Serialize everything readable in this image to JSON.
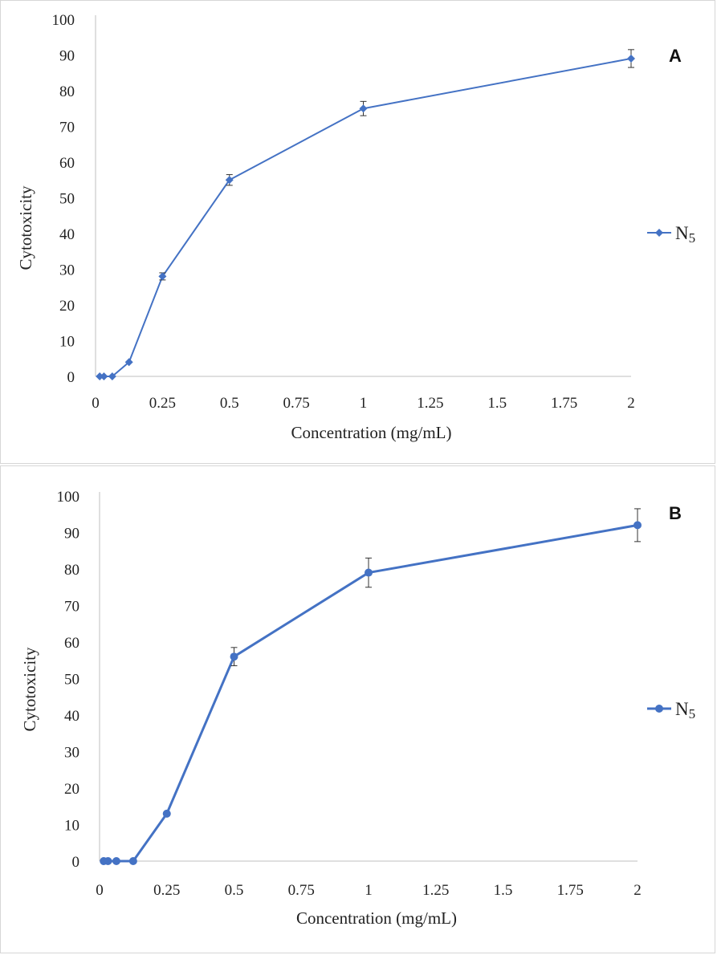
{
  "chart_data": [
    {
      "type": "line",
      "panel_label": "A",
      "xlabel": "Concentration (mg/mL)",
      "ylabel": "Cytotoxicity",
      "xlim": [
        0,
        2
      ],
      "ylim": [
        0,
        100
      ],
      "x_ticks": [
        "0",
        "0.25",
        "0.5",
        "0.75",
        "1",
        "1.25",
        "1.5",
        "1.75",
        "2"
      ],
      "y_ticks": [
        "0",
        "10",
        "20",
        "30",
        "40",
        "50",
        "60",
        "70",
        "80",
        "90",
        "100"
      ],
      "marker": "diamond",
      "color": "#4472c4",
      "legend": {
        "name": "N",
        "subscript": "5",
        "position": "right"
      },
      "series": [
        {
          "name": "N5",
          "x": [
            0.0156,
            0.0313,
            0.0625,
            0.125,
            0.25,
            0.5,
            1,
            2
          ],
          "y": [
            0,
            0,
            0,
            4,
            28,
            55,
            75,
            89
          ],
          "error": [
            0,
            0,
            0,
            0,
            1,
            1.5,
            2,
            2.5
          ]
        }
      ]
    },
    {
      "type": "line",
      "panel_label": "B",
      "xlabel": "Concentration (mg/mL)",
      "ylabel": "Cytotoxicity",
      "xlim": [
        0,
        2
      ],
      "ylim": [
        0,
        100
      ],
      "x_ticks": [
        "0",
        "0.25",
        "0.5",
        "0.75",
        "1",
        "1.25",
        "1.5",
        "1.75",
        "2"
      ],
      "y_ticks": [
        "0",
        "10",
        "20",
        "30",
        "40",
        "50",
        "60",
        "70",
        "80",
        "90",
        "100"
      ],
      "marker": "circle",
      "color": "#4472c4",
      "legend": {
        "name": "N",
        "subscript": "5",
        "position": "right"
      },
      "series": [
        {
          "name": "N5",
          "x": [
            0.0156,
            0.0313,
            0.0625,
            0.125,
            0.25,
            0.5,
            1,
            2
          ],
          "y": [
            0,
            0,
            0,
            0,
            13,
            56,
            79,
            92
          ],
          "error": [
            0,
            0,
            0,
            0,
            0,
            2.5,
            4,
            4.5
          ]
        }
      ]
    }
  ]
}
